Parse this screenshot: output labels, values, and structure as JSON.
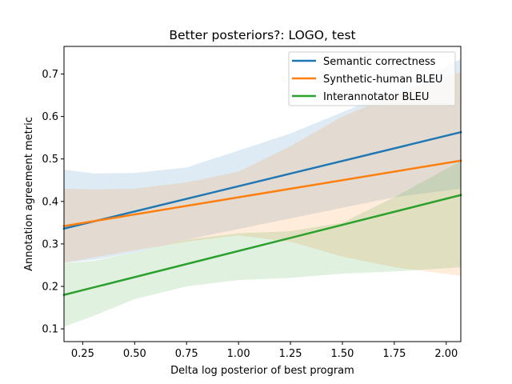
{
  "chart_data": {
    "type": "line",
    "title": "Better posteriors?: LOGO, test",
    "xlabel": "Delta log posterior of best program",
    "ylabel": "Annotation agreement metric",
    "xlim": [
      0.16,
      2.07
    ],
    "ylim": [
      0.07,
      0.765
    ],
    "x_ticks": [
      0.25,
      0.5,
      0.75,
      1.0,
      1.25,
      1.5,
      1.75,
      2.0
    ],
    "x_tick_labels": [
      "0.25",
      "0.50",
      "0.75",
      "1.00",
      "1.25",
      "1.50",
      "1.75",
      "2.00"
    ],
    "y_ticks": [
      0.1,
      0.2,
      0.3,
      0.4,
      0.5,
      0.6,
      0.7
    ],
    "y_tick_labels": [
      "0.1",
      "0.2",
      "0.3",
      "0.4",
      "0.5",
      "0.6",
      "0.7"
    ],
    "grid": false,
    "legend_position": "top-right",
    "series": [
      {
        "name": "Semantic correctness",
        "color": "#1f77b4",
        "x": [
          0.16,
          2.07
        ],
        "y": [
          0.336,
          0.563
        ],
        "band_upper": {
          "x": [
            0.16,
            0.3,
            0.5,
            0.75,
            1.0,
            1.25,
            1.5,
            1.75,
            2.07
          ],
          "y": [
            0.475,
            0.466,
            0.467,
            0.48,
            0.52,
            0.56,
            0.61,
            0.66,
            0.735
          ]
        },
        "band_lower": {
          "x": [
            0.16,
            0.3,
            0.5,
            0.75,
            1.0,
            1.25,
            1.5,
            1.75,
            2.07
          ],
          "y": [
            0.256,
            0.262,
            0.28,
            0.31,
            0.335,
            0.36,
            0.385,
            0.41,
            0.43
          ]
        }
      },
      {
        "name": "Synthetic-human BLEU",
        "color": "#ff7f0e",
        "x": [
          0.16,
          2.07
        ],
        "y": [
          0.342,
          0.496
        ],
        "band_upper": {
          "x": [
            0.16,
            0.3,
            0.5,
            0.75,
            1.0,
            1.25,
            1.5,
            1.75,
            2.07
          ],
          "y": [
            0.43,
            0.428,
            0.43,
            0.445,
            0.47,
            0.53,
            0.6,
            0.65,
            0.705
          ]
        },
        "band_lower": {
          "x": [
            0.16,
            0.3,
            0.5,
            0.75,
            1.0,
            1.25,
            1.5,
            1.75,
            2.07
          ],
          "y": [
            0.255,
            0.268,
            0.285,
            0.305,
            0.32,
            0.305,
            0.27,
            0.245,
            0.225
          ]
        }
      },
      {
        "name": "Interannotator BLEU",
        "color": "#2ca02c",
        "x": [
          0.16,
          2.07
        ],
        "y": [
          0.18,
          0.415
        ],
        "band_upper": {
          "x": [
            0.16,
            0.3,
            0.5,
            0.75,
            1.0,
            1.25,
            1.5,
            1.75,
            2.07
          ],
          "y": [
            0.255,
            0.26,
            0.28,
            0.31,
            0.325,
            0.33,
            0.35,
            0.41,
            0.495
          ]
        },
        "band_lower": {
          "x": [
            0.16,
            0.3,
            0.5,
            0.75,
            1.0,
            1.25,
            1.5,
            1.75,
            2.07
          ],
          "y": [
            0.105,
            0.13,
            0.17,
            0.2,
            0.215,
            0.22,
            0.23,
            0.235,
            0.245
          ]
        }
      }
    ]
  }
}
